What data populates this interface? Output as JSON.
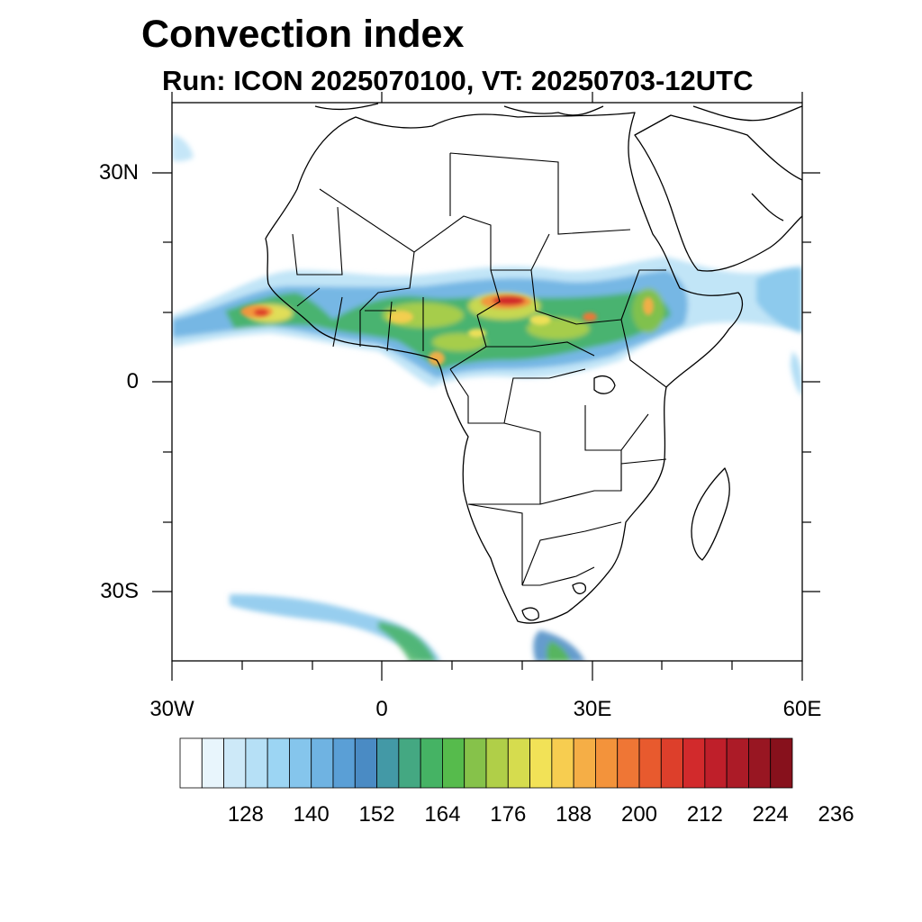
{
  "title": "Convection index",
  "subtitle": "Run: ICON 2025070100,  VT: 20250703-12UTC",
  "axes": {
    "lat_labels": [
      "30N",
      "0",
      "30S"
    ],
    "lon_labels": [
      "30W",
      "0",
      "30E",
      "60E"
    ]
  },
  "colorbar": {
    "colors": [
      "#ffffff",
      "#e8f5fc",
      "#cde9f8",
      "#b6e0f6",
      "#9cd5f3",
      "#85c5ec",
      "#6fb3e2",
      "#5a9fd6",
      "#4a8bc4",
      "#4399a6",
      "#44a882",
      "#45b364",
      "#56bb4c",
      "#86c24a",
      "#b0cf48",
      "#d6dc4e",
      "#f2e257",
      "#f7cd50",
      "#f5ae46",
      "#f3933b",
      "#ef7635",
      "#e85a2e",
      "#dd3f2b",
      "#d22a2c",
      "#bf1f2a",
      "#ac1b27",
      "#981622",
      "#87111c"
    ],
    "tick_labels": [
      "128",
      "140",
      "152",
      "164",
      "176",
      "188",
      "200",
      "212",
      "224",
      "236"
    ]
  },
  "map": {
    "lon_range": [
      -30,
      60
    ],
    "lat_range": [
      -40,
      40
    ],
    "projection": "cylindrical equidistant",
    "features": [
      "coastlines",
      "country borders"
    ]
  }
}
